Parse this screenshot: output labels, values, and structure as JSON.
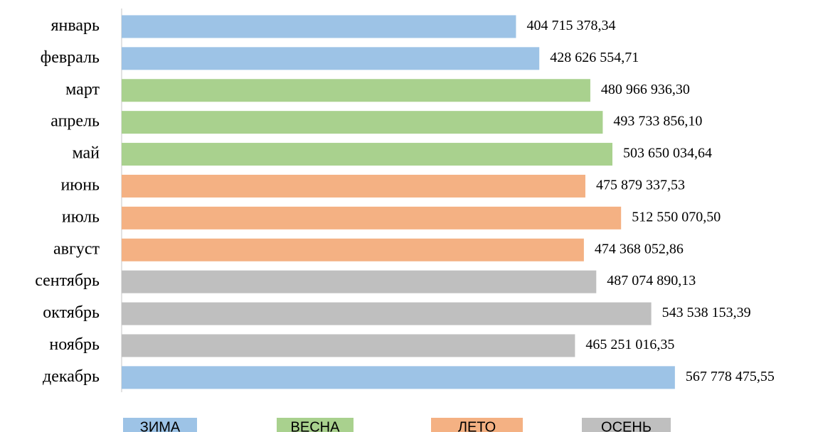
{
  "chart_data": {
    "type": "bar",
    "orientation": "horizontal",
    "categories": [
      "январь",
      "февраль",
      "март",
      "апрель",
      "май",
      "июнь",
      "июль",
      "август",
      "сентябрь",
      "октябрь",
      "ноябрь",
      "декабрь"
    ],
    "values": [
      404715378.34,
      428626554.71,
      480966936.3,
      493733856.1,
      503650034.64,
      475879337.53,
      512550070.5,
      474368052.86,
      487074890.13,
      543538153.39,
      465251016.35,
      567778475.55
    ],
    "value_labels": [
      "404 715 378,34",
      "428 626 554,71",
      "480 966 936,30",
      "493 733 856,10",
      "503 650 034,64",
      "475 879 337,53",
      "512 550 070,50",
      "474 368 052,86",
      "487 074 890,13",
      "543 538 153,39",
      "465 251 016,35",
      "567 778 475,55"
    ],
    "colors": [
      "#9dc3e6",
      "#9dc3e6",
      "#a9d18e",
      "#a9d18e",
      "#a9d18e",
      "#f4b183",
      "#f4b183",
      "#f4b183",
      "#bfbfbf",
      "#bfbfbf",
      "#bfbfbf",
      "#9dc3e6"
    ],
    "xlim": [
      0,
      600000000
    ],
    "legend": [
      {
        "label": "ЗИМА",
        "color": "#9dc3e6"
      },
      {
        "label": "ВЕСНА",
        "color": "#a9d18e"
      },
      {
        "label": "ЛЕТО",
        "color": "#f4b183"
      },
      {
        "label": "ОСЕНЬ",
        "color": "#bfbfbf"
      }
    ]
  }
}
